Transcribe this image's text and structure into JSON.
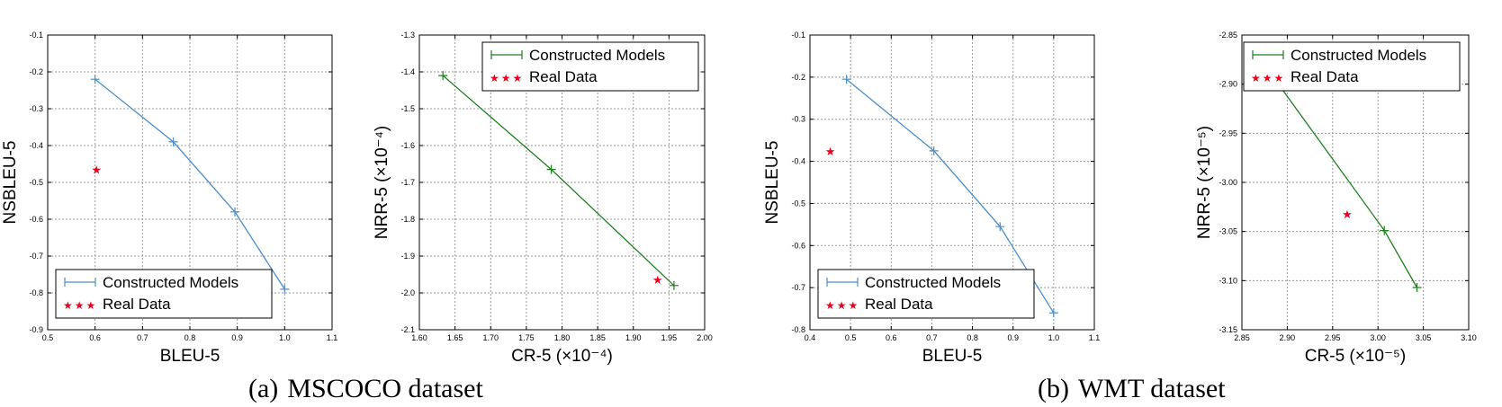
{
  "captions": {
    "a": {
      "label": "(a)",
      "text": "MSCOCO dataset"
    },
    "b": {
      "label": "(b)",
      "text": "WMT dataset"
    }
  },
  "colors": {
    "blue": "#4c8ec9",
    "green": "#1f7f1f",
    "red": "#e8001c",
    "grid": "#9a9a9a",
    "axis": "#000000"
  },
  "legend_glyph": "★★★",
  "chart_data": [
    {
      "type": "line",
      "xlabel": "BLEU-5",
      "ylabel": "NSBLEU-5",
      "xlim": [
        0.5,
        1.1
      ],
      "ylim": [
        -0.9,
        -0.1
      ],
      "xticks": [
        0.5,
        0.6,
        0.7,
        0.8,
        0.9,
        1.0,
        1.1
      ],
      "xtick_labels": [
        "0.5",
        "0.6",
        "0.7",
        "0.8",
        "0.9",
        "1.0",
        "1.1"
      ],
      "yticks": [
        -0.9,
        -0.8,
        -0.7,
        -0.6,
        -0.5,
        -0.4,
        -0.3,
        -0.2,
        -0.1
      ],
      "ytick_labels": [
        "-0.9",
        "-0.8",
        "-0.7",
        "-0.6",
        "-0.5",
        "-0.4",
        "-0.3",
        "-0.2",
        "-0.1"
      ],
      "grid": true,
      "legend_position": "lower-left",
      "series": [
        {
          "name": "Constructed Models",
          "kind": "line",
          "color": "#4c8ec9",
          "x": [
            0.6,
            0.765,
            0.895,
            1.0
          ],
          "y": [
            -0.22,
            -0.39,
            -0.58,
            -0.79
          ]
        },
        {
          "name": "Real Data",
          "kind": "scatter",
          "color": "#e8001c",
          "x": [
            0.603
          ],
          "y": [
            -0.465
          ]
        }
      ]
    },
    {
      "type": "line",
      "xlabel": "CR-5 (×10⁻⁴)",
      "ylabel": "NRR-5 (×10⁻⁴)",
      "xlim": [
        1.6,
        2.0
      ],
      "ylim": [
        -2.1,
        -1.3
      ],
      "xticks": [
        1.6,
        1.65,
        1.7,
        1.75,
        1.8,
        1.85,
        1.9,
        1.95,
        2.0
      ],
      "xtick_labels": [
        "1.60",
        "1.65",
        "1.70",
        "1.75",
        "1.80",
        "1.85",
        "1.90",
        "1.95",
        "2.00"
      ],
      "yticks": [
        -2.1,
        -2.0,
        -1.9,
        -1.8,
        -1.7,
        -1.6,
        -1.5,
        -1.4,
        -1.3
      ],
      "ytick_labels": [
        "-2.1",
        "-2.0",
        "-1.9",
        "-1.8",
        "-1.7",
        "-1.6",
        "-1.5",
        "-1.4",
        "-1.3"
      ],
      "grid": true,
      "legend_position": "upper-right",
      "series": [
        {
          "name": "Constructed Models",
          "kind": "line",
          "color": "#1f7f1f",
          "x": [
            1.633,
            1.785,
            1.957
          ],
          "y": [
            -1.41,
            -1.665,
            -1.98
          ]
        },
        {
          "name": "Real Data",
          "kind": "scatter",
          "color": "#e8001c",
          "x": [
            1.934
          ],
          "y": [
            -1.963
          ]
        }
      ]
    },
    {
      "type": "line",
      "xlabel": "BLEU-5",
      "ylabel": "NSBLEU-5",
      "xlim": [
        0.4,
        1.1
      ],
      "ylim": [
        -0.8,
        -0.1
      ],
      "xticks": [
        0.4,
        0.5,
        0.6,
        0.7,
        0.8,
        0.9,
        1.0,
        1.1
      ],
      "xtick_labels": [
        "0.4",
        "0.5",
        "0.6",
        "0.7",
        "0.8",
        "0.9",
        "1.0",
        "1.1"
      ],
      "yticks": [
        -0.8,
        -0.7,
        -0.6,
        -0.5,
        -0.4,
        -0.3,
        -0.2,
        -0.1
      ],
      "ytick_labels": [
        "-0.8",
        "-0.7",
        "-0.6",
        "-0.5",
        "-0.4",
        "-0.3",
        "-0.2",
        "-0.1"
      ],
      "grid": true,
      "legend_position": "lower-left",
      "series": [
        {
          "name": "Constructed Models",
          "kind": "line",
          "color": "#4c8ec9",
          "x": [
            0.49,
            0.705,
            0.868,
            1.0
          ],
          "y": [
            -0.205,
            -0.375,
            -0.555,
            -0.76
          ]
        },
        {
          "name": "Real Data",
          "kind": "scatter",
          "color": "#e8001c",
          "x": [
            0.45
          ],
          "y": [
            -0.375
          ]
        }
      ]
    },
    {
      "type": "line",
      "xlabel": "CR-5 (×10⁻⁵)",
      "ylabel": "NRR-5 (×10⁻⁵)",
      "xlim": [
        2.85,
        3.1
      ],
      "ylim": [
        -3.15,
        -2.85
      ],
      "xticks": [
        2.85,
        2.9,
        2.95,
        3.0,
        3.05,
        3.1
      ],
      "xtick_labels": [
        "2.85",
        "2.90",
        "2.95",
        "3.00",
        "3.05",
        "3.10"
      ],
      "yticks": [
        -3.15,
        -3.1,
        -3.05,
        -3.0,
        -2.95,
        -2.9,
        -2.85
      ],
      "ytick_labels": [
        "-3.15",
        "-3.10",
        "-3.05",
        "-3.00",
        "-2.95",
        "-2.90",
        "-2.85"
      ],
      "grid": true,
      "legend_position": "upper-right",
      "series": [
        {
          "name": "Constructed Models",
          "kind": "line",
          "color": "#1f7f1f",
          "x": [
            2.873,
            3.007,
            3.043
          ],
          "y": [
            -2.878,
            -3.049,
            -3.107
          ]
        },
        {
          "name": "Real Data",
          "kind": "scatter",
          "color": "#e8001c",
          "x": [
            2.966
          ],
          "y": [
            -3.032
          ]
        }
      ]
    }
  ]
}
